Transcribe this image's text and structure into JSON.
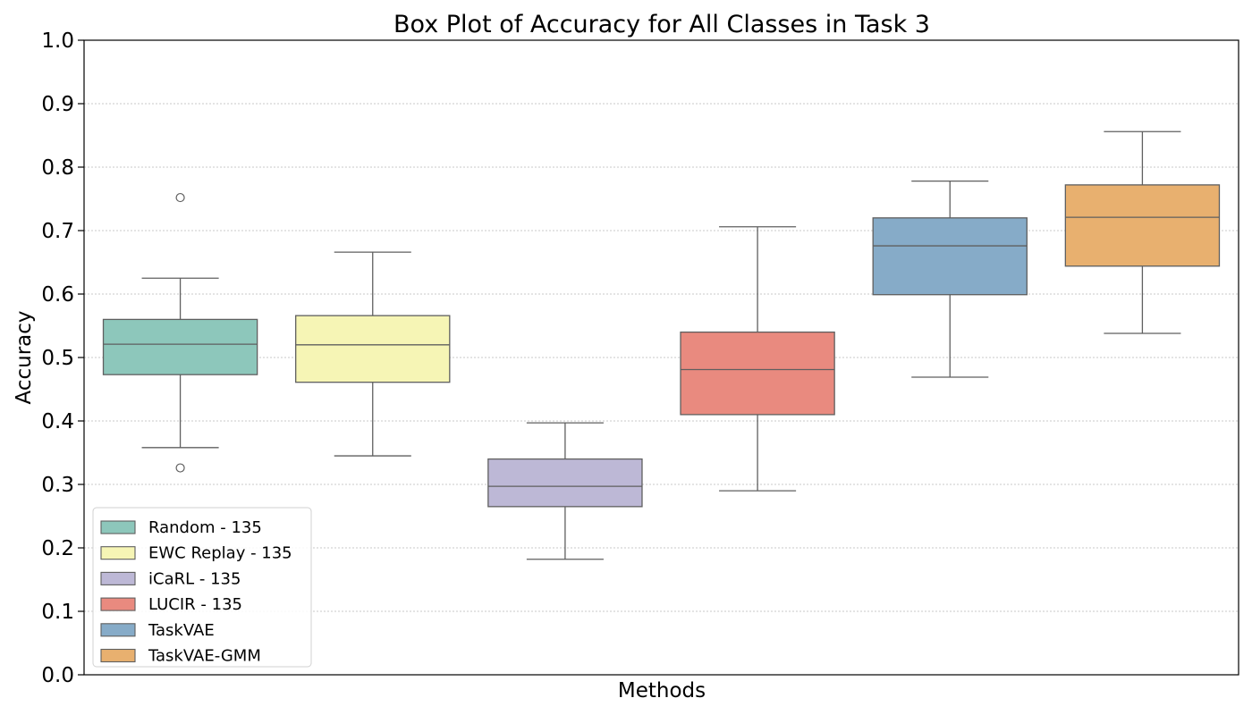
{
  "chart_data": {
    "type": "box",
    "title": "Box Plot of Accuracy for All Classes in Task 3",
    "xlabel": "Methods",
    "ylabel": "Accuracy",
    "ylim": [
      0.0,
      1.0
    ],
    "yticks": [
      "0.0",
      "0.1",
      "0.2",
      "0.3",
      "0.4",
      "0.5",
      "0.6",
      "0.7",
      "0.8",
      "0.9",
      "1.0"
    ],
    "grid": "horizontal dotted",
    "legend_position": "lower-left",
    "series": [
      {
        "name": "Random - 135",
        "color": "#8dc7bb",
        "whisker_low": 0.358,
        "q1": 0.473,
        "median": 0.521,
        "q3": 0.56,
        "whisker_high": 0.625,
        "outliers": [
          0.752,
          0.326
        ]
      },
      {
        "name": "EWC Replay - 135",
        "color": "#f6f5b5",
        "whisker_low": 0.345,
        "q1": 0.461,
        "median": 0.52,
        "q3": 0.566,
        "whisker_high": 0.666,
        "outliers": []
      },
      {
        "name": "iCaRL - 135",
        "color": "#bdb8d6",
        "whisker_low": 0.182,
        "q1": 0.265,
        "median": 0.297,
        "q3": 0.34,
        "whisker_high": 0.397,
        "outliers": []
      },
      {
        "name": "LUCIR - 135",
        "color": "#e98a7f",
        "whisker_low": 0.29,
        "q1": 0.41,
        "median": 0.481,
        "q3": 0.54,
        "whisker_high": 0.706,
        "outliers": []
      },
      {
        "name": "TaskVAE",
        "color": "#86abc8",
        "whisker_low": 0.469,
        "q1": 0.599,
        "median": 0.676,
        "q3": 0.72,
        "whisker_high": 0.778,
        "outliers": []
      },
      {
        "name": "TaskVAE-GMM",
        "color": "#e8b06f",
        "whisker_low": 0.538,
        "q1": 0.644,
        "median": 0.721,
        "q3": 0.772,
        "whisker_high": 0.856,
        "outliers": []
      }
    ]
  }
}
